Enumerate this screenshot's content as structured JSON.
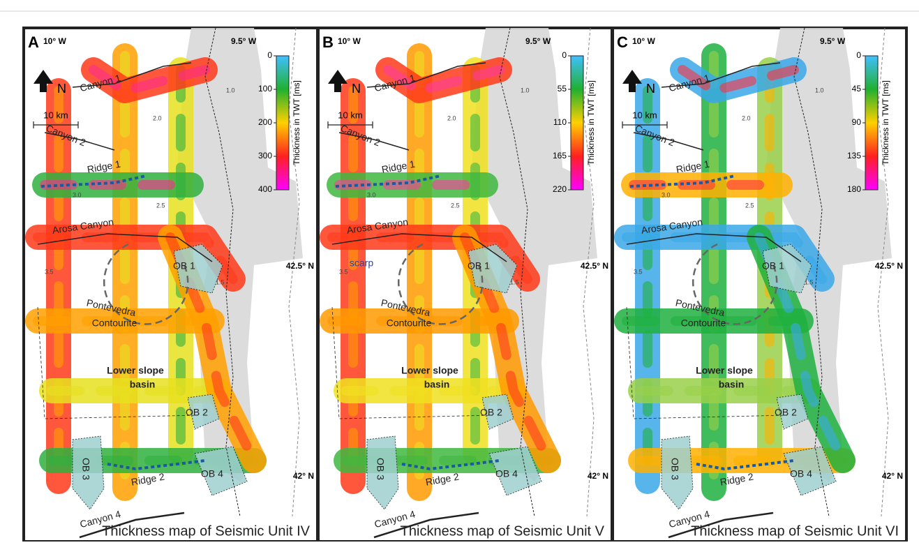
{
  "panels": [
    {
      "letter": "A",
      "lon": [
        "10° W",
        "9.5° W"
      ],
      "lat": [
        "42.5° N",
        "42° N"
      ],
      "colorbar": {
        "title": "Thickness in TWT [ms]",
        "ticks": [
          0,
          100,
          200,
          300,
          400
        ]
      },
      "north": "N",
      "scale": "10 km",
      "labels": [
        "Canyon 1",
        "Canyon 2",
        "Ridge 1",
        "Arosa Canyon",
        "OB 1",
        "Pontevedra",
        "Contourite",
        "Lower slope",
        "basin",
        "OB 2",
        "OB 3",
        "Ridge 2",
        "OB 4",
        "Canyon 4"
      ],
      "contours": [
        "3.5",
        "3.0",
        "2.5",
        "2.0",
        "1.5",
        "1.0"
      ],
      "caption": "Thickness map of Seismic Unit IV"
    },
    {
      "letter": "B",
      "lon": [
        "10° W",
        "9.5° W"
      ],
      "lat": [
        "42.5° N",
        "42° N"
      ],
      "colorbar": {
        "title": "Thickness in TWT [ms]",
        "ticks": [
          0,
          55,
          110,
          165,
          220
        ]
      },
      "north": "N",
      "scale": "10 km",
      "labels": [
        "Canyon 1",
        "Canyon 2",
        "Ridge 1",
        "Arosa Canyon",
        "scarp",
        "OB 1",
        "Pontevedra",
        "Contourite",
        "Lower slope",
        "basin",
        "OB 2",
        "OB 3",
        "Ridge 2",
        "OB 4",
        "Canyon 4"
      ],
      "contours": [
        "3.5",
        "3.0",
        "2.5",
        "2.0",
        "1.5",
        "1.0"
      ],
      "caption": "Thickness map of Seismic Unit V"
    },
    {
      "letter": "C",
      "lon": [
        "10° W",
        "9.5° W"
      ],
      "lat": [
        "42.5° N",
        "42° N"
      ],
      "colorbar": {
        "title": "Thickness in TWT [ms]",
        "ticks": [
          0,
          45,
          90,
          135,
          180
        ]
      },
      "north": "N",
      "scale": "10 km",
      "labels": [
        "Canyon 1",
        "Canyon 2",
        "Ridge 1",
        "Arosa Canyon",
        "OB 1",
        "Pontevedra",
        "Contourite",
        "Lower slope",
        "basin",
        "OB 2",
        "OB 3",
        "Ridge 2",
        "OB 4",
        "Canyon 4"
      ],
      "contours": [
        "3.5",
        "3.0",
        "2.5",
        "2.0",
        "1.5",
        "1.0"
      ],
      "caption": "Thickness map of Seismic Unit VI"
    }
  ]
}
